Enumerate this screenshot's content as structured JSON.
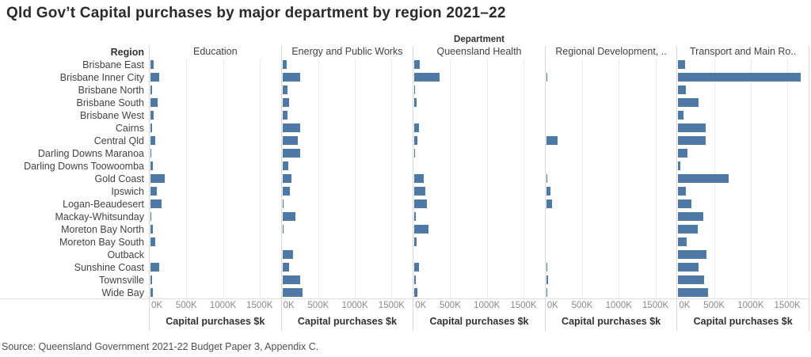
{
  "title": "Qld Gov’t Capital purchases by major department by region 2021–22",
  "department_label": "Department",
  "region_header": "Region",
  "source": "Source: Queensland Government 2021-22 Budget Paper 3, Appendix C.",
  "colors": {
    "bar": "#4e79a7",
    "grid": "#ebebeb",
    "panel_border": "#d9d9d9",
    "tick_text": "#8a8a8a",
    "label_text": "#424242",
    "title_text": "#2b2b2b"
  },
  "chart_data": {
    "type": "bar",
    "orientation": "horizontal",
    "unit": "thousands of dollars ($k)",
    "title": "Qld Gov’t Capital purchases by major department by region 2021–22",
    "xlabel": "Capital purchases $k",
    "ylabel": "Region",
    "facet_label": "Department",
    "x_ticks": [
      0,
      500,
      1000,
      1500
    ],
    "x_tick_labels": [
      "0K",
      "500K",
      "1000K",
      "1500K"
    ],
    "xlim": [
      0,
      1790
    ],
    "grid": true,
    "legend_position": "none",
    "categories": [
      "Brisbane East",
      "Brisbane Inner City",
      "Brisbane North",
      "Brisbane South",
      "Brisbane West",
      "Cairns",
      "Central Qld",
      "Darling Downs Maranoa",
      "Darling Downs Toowoomba",
      "Gold Coast",
      "Ipswich",
      "Logan-Beaudesert",
      "Mackay-Whitsunday",
      "Moreton Bay North",
      "Moreton Bay South",
      "Outback",
      "Sunshine Coast",
      "Townsville",
      "Wide Bay"
    ],
    "series": [
      {
        "name": "Education",
        "values": [
          50,
          125,
          35,
          105,
          55,
          35,
          80,
          25,
          45,
          200,
          95,
          160,
          20,
          45,
          75,
          10,
          135,
          35,
          40
        ]
      },
      {
        "name": "Energy and Public Works",
        "values": [
          65,
          250,
          80,
          100,
          85,
          250,
          220,
          255,
          95,
          130,
          110,
          15,
          190,
          15,
          5,
          160,
          100,
          250,
          285
        ]
      },
      {
        "name": "Queensland Health",
        "values": [
          85,
          355,
          18,
          46,
          0,
          70,
          57,
          18,
          0,
          135,
          157,
          178,
          35,
          205,
          43,
          0,
          78,
          28,
          57
        ]
      },
      {
        "name": "Regional Development, ..",
        "values": [
          0,
          18,
          0,
          0,
          0,
          0,
          160,
          0,
          0,
          15,
          70,
          85,
          0,
          0,
          0,
          0,
          18,
          35,
          28
        ]
      },
      {
        "name": "Transport and Main Ro..",
        "values": [
          100,
          1680,
          117,
          290,
          85,
          390,
          390,
          135,
          35,
          700,
          115,
          195,
          355,
          275,
          125,
          395,
          290,
          365,
          420
        ]
      }
    ]
  }
}
